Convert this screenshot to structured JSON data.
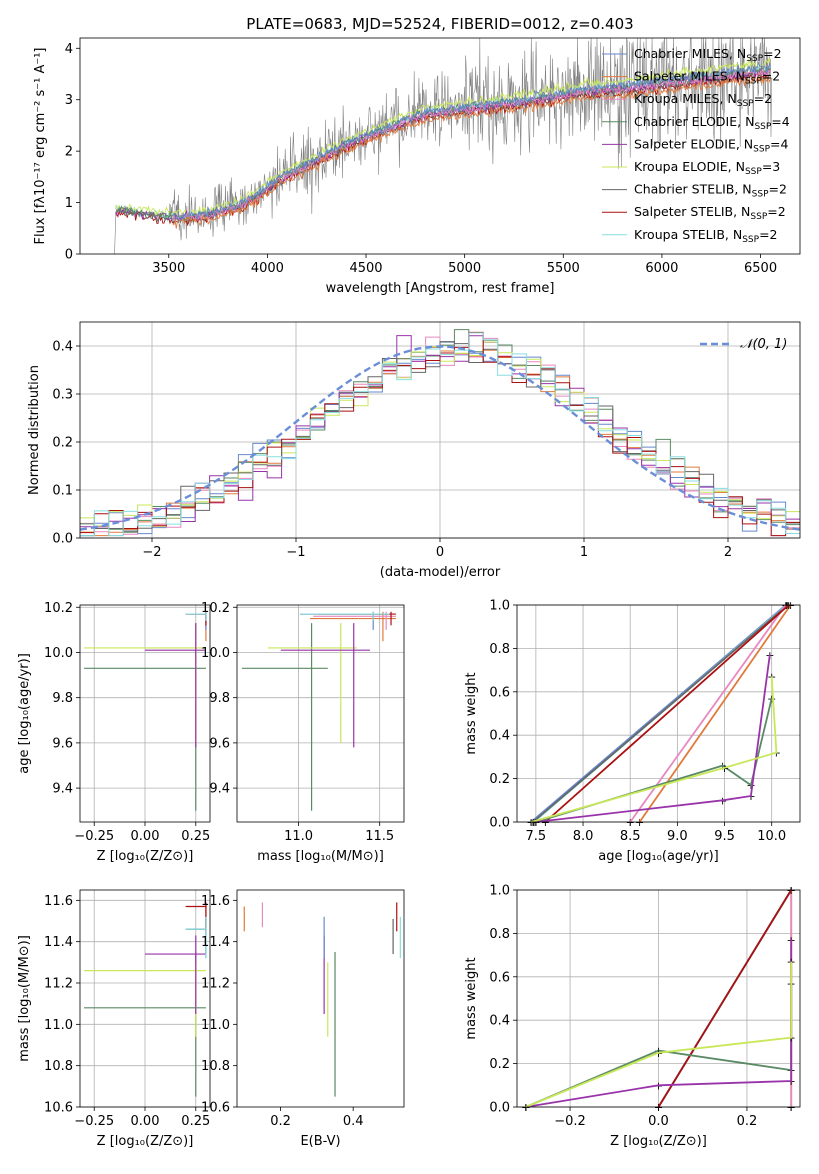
{
  "figure": {
    "title": "PLATE=0683, MJD=52524, FIBERID=0012, z=0.403"
  },
  "colors": {
    "chabrier_miles": "#6688cc",
    "salpeter_miles": "#e07a3c",
    "kroupa_miles": "#e888c0",
    "chabrier_elodie": "#5a8a64",
    "salpeter_elodie": "#9933aa",
    "kroupa_elodie": "#c8e85a",
    "chabrier_stelib": "#666666",
    "salpeter_stelib": "#aa1111",
    "kroupa_stelib": "#88dde0",
    "data": "#808080"
  },
  "chart_data": [
    {
      "id": "spectrum",
      "type": "line",
      "xlabel": "wavelength [Angstrom, rest frame]",
      "ylabel": "Flux [fλ10⁻¹⁷ erg cm⁻² s⁻¹ A⁻¹]",
      "xlim": [
        3050,
        6700
      ],
      "ylim": [
        0,
        4.2
      ],
      "xticks": [
        3500,
        4000,
        4500,
        5000,
        5500,
        6000,
        6500
      ],
      "yticks": [
        0,
        1,
        2,
        3,
        4
      ],
      "continuum": {
        "x": [
          3230,
          3300,
          3500,
          3700,
          3850,
          3950,
          4050,
          4200,
          4400,
          4600,
          4800,
          5000,
          5200,
          5400,
          5600,
          5800,
          6000,
          6200,
          6400,
          6550
        ],
        "y": [
          0.85,
          0.85,
          0.72,
          0.78,
          0.95,
          1.15,
          1.45,
          1.75,
          2.15,
          2.45,
          2.75,
          2.85,
          2.95,
          3.05,
          3.2,
          3.25,
          3.35,
          3.45,
          3.55,
          3.6
        ]
      },
      "legend": [
        {
          "label": "Chabrier MILES, N",
          "sub": "SSP",
          "tail": "=2",
          "color_key": "chabrier_miles"
        },
        {
          "label": "Salpeter MILES, N",
          "sub": "SSP",
          "tail": "=2",
          "color_key": "salpeter_miles"
        },
        {
          "label": "Kroupa MILES, N",
          "sub": "SSP",
          "tail": "=2",
          "color_key": "kroupa_miles"
        },
        {
          "label": "Chabrier ELODIE, N",
          "sub": "SSP",
          "tail": "=4",
          "color_key": "chabrier_elodie"
        },
        {
          "label": "Salpeter ELODIE, N",
          "sub": "SSP",
          "tail": "=4",
          "color_key": "salpeter_elodie"
        },
        {
          "label": "Kroupa ELODIE, N",
          "sub": "SSP",
          "tail": "=3",
          "color_key": "kroupa_elodie"
        },
        {
          "label": "Chabrier STELIB, N",
          "sub": "SSP",
          "tail": "=2",
          "color_key": "chabrier_stelib"
        },
        {
          "label": "Salpeter STELIB, N",
          "sub": "SSP",
          "tail": "=2",
          "color_key": "salpeter_stelib"
        },
        {
          "label": "Kroupa STELIB, N",
          "sub": "SSP",
          "tail": "=2",
          "color_key": "kroupa_stelib"
        }
      ],
      "legend_position": "right"
    },
    {
      "id": "residuals",
      "type": "line",
      "xlabel": "(data-model)/error",
      "ylabel": "Normed distribution",
      "xlim": [
        -2.5,
        2.5
      ],
      "ylim": [
        0,
        0.45
      ],
      "xticks": [
        -2,
        -1,
        0,
        1,
        2
      ],
      "yticks": [
        0.0,
        0.1,
        0.2,
        0.3,
        0.4
      ],
      "gaussian_label": "𝒩(0, 1)",
      "legend_position": "top-right",
      "grid": true
    },
    {
      "id": "age_vs_Z",
      "type": "scatter",
      "xlabel": "Z [log₁₀(Z/Z⊙)]",
      "ylabel": "age  [log₁₀(age/yr)]",
      "xlim": [
        -0.32,
        0.32
      ],
      "ylim": [
        9.25,
        10.21
      ],
      "xticks": [
        -0.25,
        0.0,
        0.25
      ],
      "yticks": [
        9.4,
        9.6,
        9.8,
        10.0,
        10.2
      ],
      "grid": true
    },
    {
      "id": "age_vs_mass",
      "type": "scatter",
      "xlabel": "mass [log₁₀(M/M⊙)]",
      "xlim": [
        10.62,
        11.65
      ],
      "ylim": [
        9.25,
        10.21
      ],
      "xticks": [
        11.0,
        11.5
      ],
      "yticks": [
        9.4,
        9.6,
        9.8,
        10.0,
        10.2
      ],
      "grid": true
    },
    {
      "id": "mass_weight_vs_age",
      "type": "line",
      "xlabel": "age  [log₁₀(age/yr)]",
      "ylabel": "mass weight",
      "xlim": [
        7.3,
        10.3
      ],
      "ylim": [
        0,
        1
      ],
      "xticks": [
        7.5,
        8.0,
        8.5,
        9.0,
        9.5,
        10.0
      ],
      "yticks": [
        0.0,
        0.2,
        0.4,
        0.6,
        0.8,
        1.0
      ],
      "grid": true
    },
    {
      "id": "mass_vs_Z",
      "type": "scatter",
      "xlabel": "Z [log₁₀(Z/Z⊙)]",
      "ylabel": "mass [log₁₀(M/M⊙)]",
      "xlim": [
        -0.32,
        0.32
      ],
      "ylim": [
        10.6,
        11.65
      ],
      "xticks": [
        -0.25,
        0.0,
        0.25
      ],
      "yticks": [
        10.6,
        10.8,
        11.0,
        11.2,
        11.4,
        11.6
      ],
      "grid": true
    },
    {
      "id": "mass_vs_ebv",
      "type": "scatter",
      "xlabel": "E(B-V)",
      "xlim": [
        0.08,
        0.54
      ],
      "ylim": [
        10.6,
        11.65
      ],
      "xticks": [
        0.2,
        0.4
      ],
      "yticks": [
        10.6,
        10.8,
        11.0,
        11.2,
        11.4,
        11.6
      ],
      "grid": false
    },
    {
      "id": "mass_weight_vs_Z",
      "type": "line",
      "xlabel": "Z [log₁₀(Z/Z⊙)]",
      "ylabel": "mass weight",
      "xlim": [
        -0.32,
        0.32
      ],
      "ylim": [
        0,
        1
      ],
      "xticks": [
        -0.2,
        0.0,
        0.2
      ],
      "yticks": [
        0.0,
        0.2,
        0.4,
        0.6,
        0.8,
        1.0
      ],
      "grid": true
    }
  ]
}
